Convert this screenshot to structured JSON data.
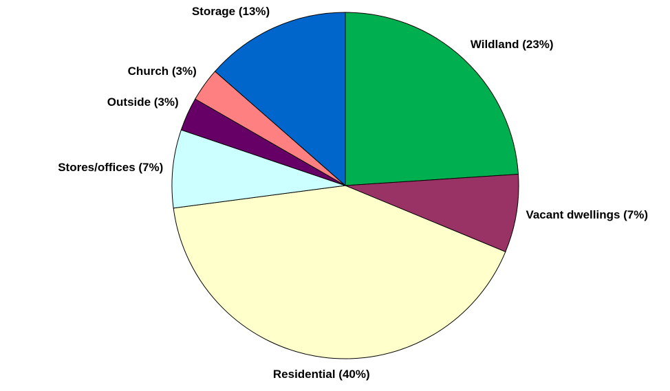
{
  "chart_data": {
    "type": "pie",
    "categories": [
      "Wildland (23%)",
      "Vacant dwellings (7%)",
      "Residential (40%)",
      "Stores/offices (7%)",
      "Outside (3%)",
      "Church (3%)",
      "Storage (13%)"
    ],
    "values": [
      23,
      7,
      40,
      7,
      3,
      3,
      13
    ],
    "colors": [
      "#00b050",
      "#993366",
      "#ffffcc",
      "#ccffff",
      "#660066",
      "#ff8080",
      "#0066cc"
    ]
  }
}
